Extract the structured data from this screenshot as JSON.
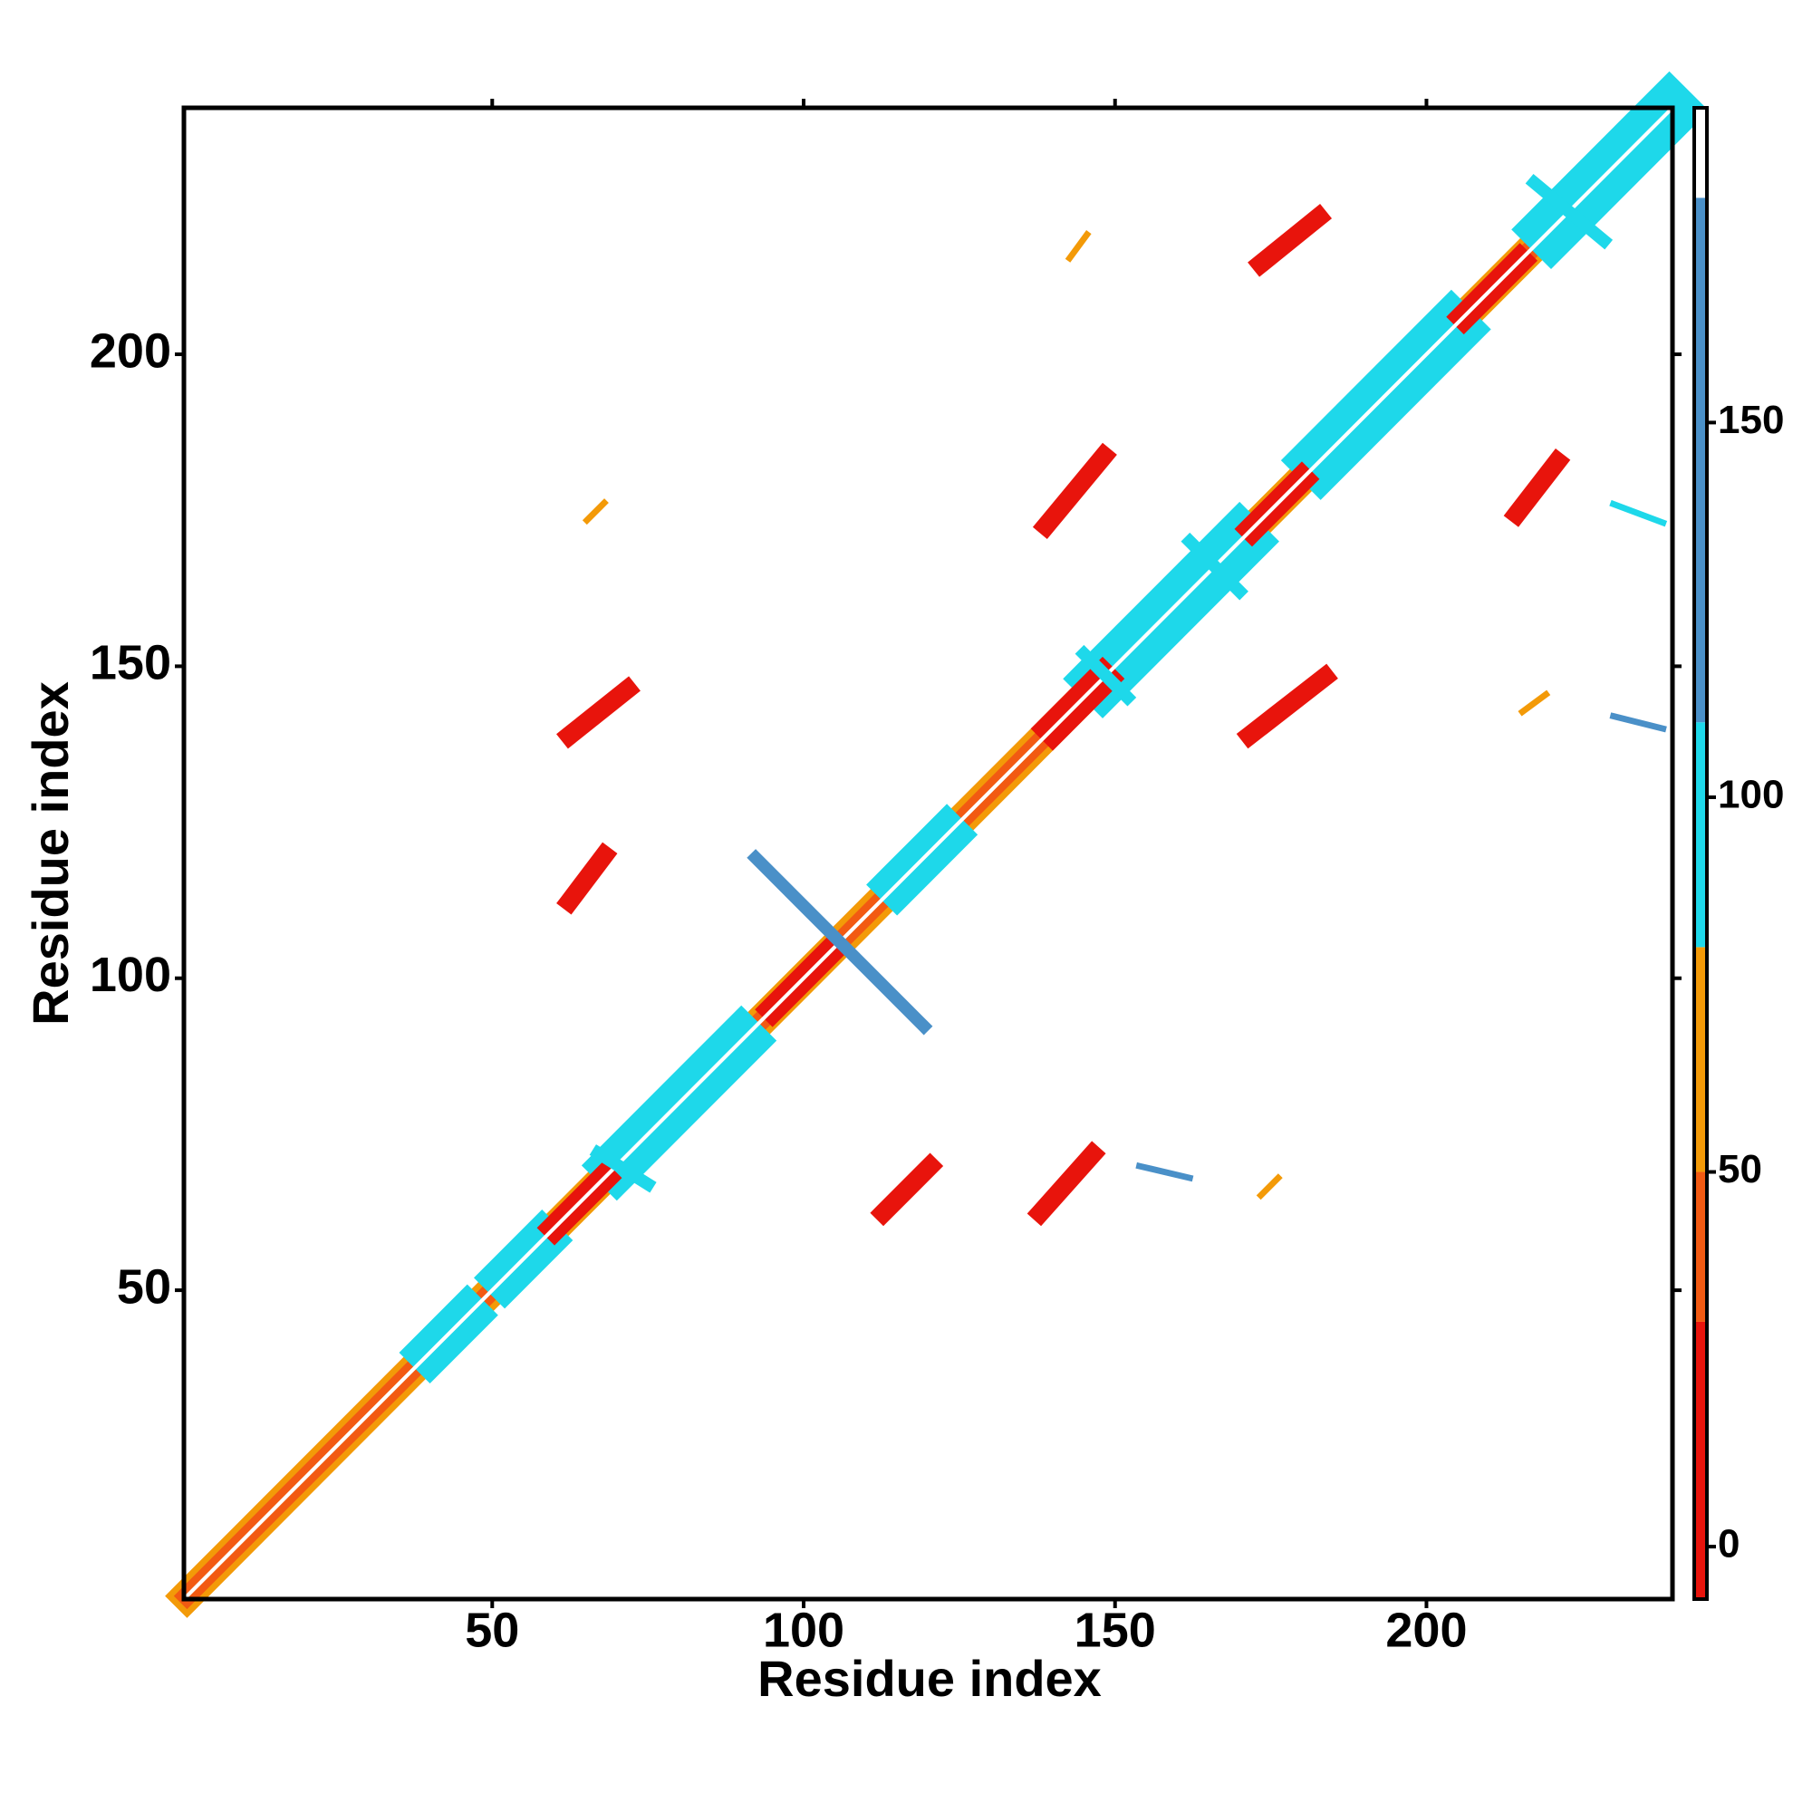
{
  "chart_data": {
    "type": "heatmap",
    "xlabel": "Residue index",
    "ylabel": "Residue index",
    "xlim": [
      0.5,
      239.5
    ],
    "ylim": [
      0.5,
      239.5
    ],
    "xticks": [
      50,
      100,
      150,
      200
    ],
    "yticks": [
      50,
      100,
      150,
      200
    ],
    "colorbar": {
      "bins": [
        -7,
        30,
        50,
        80,
        110,
        180,
        192
      ],
      "colors": [
        "#e8140c",
        "#f25a12",
        "#f39a08",
        "#1ed8ea",
        "#4a90c8",
        "#ffffff"
      ],
      "ticks": [
        0,
        50,
        100,
        150
      ]
    },
    "features": [
      {
        "from": [
          1,
          1
        ],
        "to": [
          239,
          239
        ],
        "width": 5,
        "value": 60
      },
      {
        "from": [
          1,
          1
        ],
        "to": [
          239,
          239
        ],
        "width": 3,
        "value": 40
      },
      {
        "from": [
          40,
          40
        ],
        "to": [
          46,
          46
        ],
        "width": 7,
        "value": 95
      },
      {
        "from": [
          52,
          52
        ],
        "to": [
          58,
          58
        ],
        "width": 7,
        "value": 95
      },
      {
        "from": [
          70,
          70
        ],
        "to": [
          90,
          90
        ],
        "width": 8,
        "value": 95
      },
      {
        "from": [
          115,
          115
        ],
        "to": [
          123,
          123
        ],
        "width": 7,
        "value": 95
      },
      {
        "from": [
          148,
          148
        ],
        "to": [
          170,
          170
        ],
        "width": 9,
        "value": 95
      },
      {
        "from": [
          183,
          183
        ],
        "to": [
          204,
          204
        ],
        "width": 9,
        "value": 95
      },
      {
        "from": [
          220,
          220
        ],
        "to": [
          239,
          239
        ],
        "width": 9,
        "value": 95
      },
      {
        "from": [
          60,
          60
        ],
        "to": [
          68,
          68
        ],
        "width": 4,
        "value": 10
      },
      {
        "from": [
          95,
          95
        ],
        "to": [
          105,
          105
        ],
        "width": 4,
        "value": 10
      },
      {
        "from": [
          140,
          140
        ],
        "to": [
          148,
          148
        ],
        "width": 5,
        "value": 10
      },
      {
        "from": [
          172,
          172
        ],
        "to": [
          180,
          180
        ],
        "width": 4,
        "value": 10
      },
      {
        "from": [
          206,
          206
        ],
        "to": [
          215,
          215
        ],
        "width": 4,
        "value": 10
      },
      {
        "from": [
          1,
          1
        ],
        "to": [
          239,
          239
        ],
        "width": 0.6,
        "value": 190
      },
      {
        "from": [
          92.3,
          119.3
        ],
        "to": [
          119.3,
          92.3
        ],
        "width": 2,
        "value": 140
      },
      {
        "from": [
          62.4,
          138.9
        ],
        "to": [
          71.7,
          146.3
        ],
        "width": 3,
        "value": 10
      },
      {
        "from": [
          62.4,
          112.3
        ],
        "to": [
          68,
          119.7
        ],
        "width": 3,
        "value": 10
      },
      {
        "from": [
          112.8,
          62.4
        ],
        "to": [
          120.3,
          69.9
        ],
        "width": 3,
        "value": 10
      },
      {
        "from": [
          138,
          62.4
        ],
        "to": [
          146.4,
          71.8
        ],
        "width": 3,
        "value": 10
      },
      {
        "from": [
          171.6,
          138.9
        ],
        "to": [
          183.7,
          148.3
        ],
        "width": 3,
        "value": 10
      },
      {
        "from": [
          138.9,
          172.5
        ],
        "to": [
          148.2,
          183.7
        ],
        "width": 3,
        "value": 10
      },
      {
        "from": [
          173.4,
          214.5
        ],
        "to": [
          182.7,
          222
        ],
        "width": 3,
        "value": 10
      },
      {
        "from": [
          214.5,
          174.4
        ],
        "to": [
          221,
          182.8
        ],
        "width": 3,
        "value": 10
      },
      {
        "from": [
          142.7,
          215.4
        ],
        "to": [
          145.5,
          219.2
        ],
        "width": 1,
        "value": 55
      },
      {
        "from": [
          215.4,
          142.7
        ],
        "to": [
          219.2,
          145.5
        ],
        "width": 1,
        "value": 55
      },
      {
        "from": [
          65.2,
          173.4
        ],
        "to": [
          68,
          176.2
        ],
        "width": 1,
        "value": 55
      },
      {
        "from": [
          173.4,
          65.2
        ],
        "to": [
          176.2,
          68
        ],
        "width": 1,
        "value": 55
      },
      {
        "from": [
          67,
          72
        ],
        "to": [
          75,
          67
        ],
        "width": 2,
        "value": 95
      },
      {
        "from": [
          217.3,
          227.5
        ],
        "to": [
          228.5,
          218.2
        ],
        "width": 2,
        "value": 95
      },
      {
        "from": [
          162,
          170
        ],
        "to": [
          170,
          162
        ],
        "width": 2,
        "value": 95
      },
      {
        "from": [
          145,
          152
        ],
        "to": [
          152,
          145
        ],
        "width": 2,
        "value": 95
      },
      {
        "from": [
          153.9,
          69.9
        ],
        "to": [
          162,
          68
        ],
        "width": 1,
        "value": 130
      },
      {
        "from": [
          230,
          142
        ],
        "to": [
          238,
          140
        ],
        "width": 1,
        "value": 130
      },
      {
        "from": [
          230,
          176
        ],
        "to": [
          238,
          173
        ],
        "width": 1,
        "value": 95
      }
    ]
  }
}
